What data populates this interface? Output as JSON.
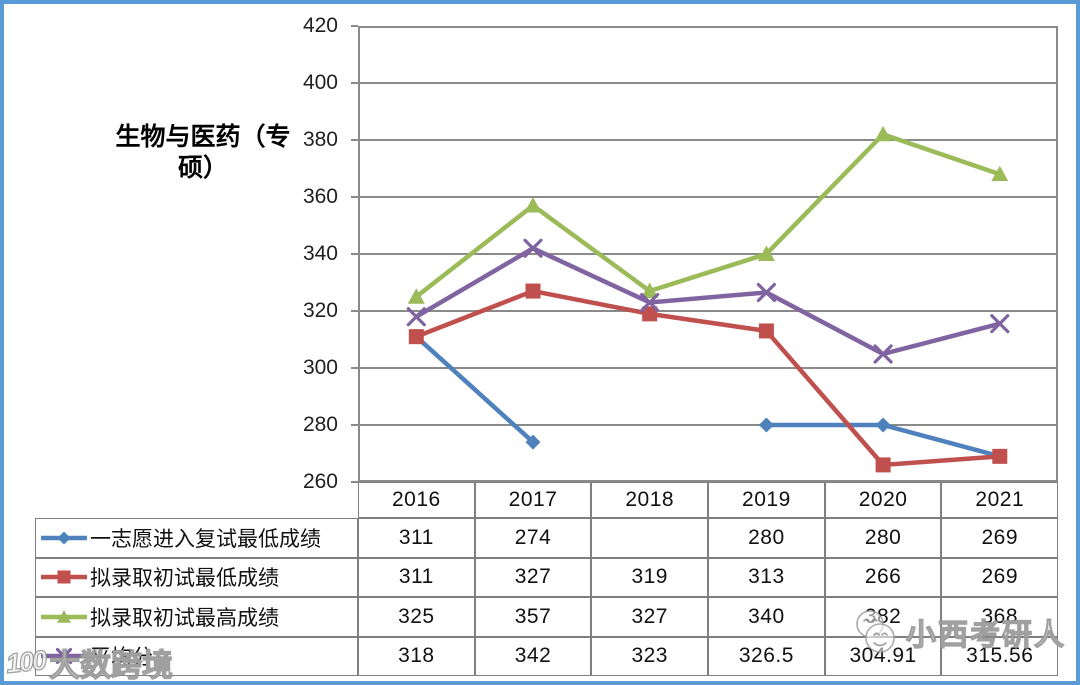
{
  "frame": {
    "border_color": "#5B9BD5",
    "background": "#ffffff",
    "grid_color": "#8a8a8a"
  },
  "chart_data": {
    "type": "line",
    "title": "生物与医药（专硕）",
    "categories": [
      "2016",
      "2017",
      "2018",
      "2019",
      "2020",
      "2021"
    ],
    "y_axis": {
      "min": 260,
      "max": 420,
      "step": 20,
      "ticks": [
        420,
        400,
        380,
        360,
        340,
        320,
        300,
        280,
        260
      ]
    },
    "grid": true,
    "legend_position": "table-left",
    "data_table": true,
    "series": [
      {
        "name": "一志愿进入复试最低成绩",
        "color": "#4F81BD",
        "marker": "diamond",
        "values": [
          311,
          274,
          null,
          280,
          280,
          269
        ],
        "display": [
          "311",
          "274",
          "",
          "280",
          "280",
          "269"
        ]
      },
      {
        "name": "拟录取初试最低成绩",
        "color": "#C0504D",
        "marker": "square",
        "values": [
          311,
          327,
          319,
          313,
          266,
          269
        ],
        "display": [
          "311",
          "327",
          "319",
          "313",
          "266",
          "269"
        ]
      },
      {
        "name": "拟录取初试最高成绩",
        "color": "#9BBB59",
        "marker": "triangle",
        "values": [
          325,
          357,
          327,
          340,
          382,
          368
        ],
        "display": [
          "325",
          "357",
          "327",
          "340",
          "382",
          "368"
        ]
      },
      {
        "name": "平均分",
        "color": "#8064A2",
        "marker": "x",
        "values": [
          318,
          342,
          323,
          326.5,
          304.91,
          315.56
        ],
        "display": [
          "318",
          "342",
          "323",
          "326.5",
          "304.91",
          "315.56"
        ]
      }
    ]
  },
  "watermarks": {
    "bottom_left": {
      "logo": "100",
      "text": "大数跨境"
    },
    "bottom_right": {
      "logo": "double-smiley",
      "text": "小西考研人"
    }
  }
}
